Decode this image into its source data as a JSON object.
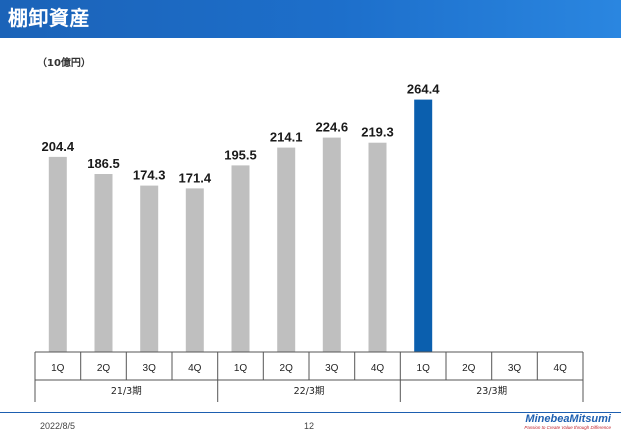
{
  "header": {
    "title": "棚卸資産"
  },
  "chart_data": {
    "type": "bar",
    "unit_label": "（10億円）",
    "categories": [
      "1Q",
      "2Q",
      "3Q",
      "4Q",
      "1Q",
      "2Q",
      "3Q",
      "4Q",
      "1Q",
      "2Q",
      "3Q",
      "4Q"
    ],
    "groups": [
      {
        "label": "21/3期",
        "count": 4
      },
      {
        "label": "22/3期",
        "count": 4
      },
      {
        "label": "23/3期",
        "count": 4
      }
    ],
    "values": [
      204.4,
      186.5,
      174.3,
      171.4,
      195.5,
      214.1,
      224.6,
      219.3,
      264.4,
      null,
      null,
      null
    ],
    "bar_colors": [
      "#bfbfbf",
      "#bfbfbf",
      "#bfbfbf",
      "#bfbfbf",
      "#bfbfbf",
      "#bfbfbf",
      "#bfbfbf",
      "#bfbfbf",
      "#0b5fae",
      "#bfbfbf",
      "#bfbfbf",
      "#bfbfbf"
    ],
    "ylim": [
      0,
      280
    ],
    "grid": false,
    "legend": "none"
  },
  "footer": {
    "date": "2022/8/5",
    "page": "12",
    "brand_name": "MinebeaMitsumi",
    "brand_tagline": "Passion to Create Value through Difference"
  }
}
